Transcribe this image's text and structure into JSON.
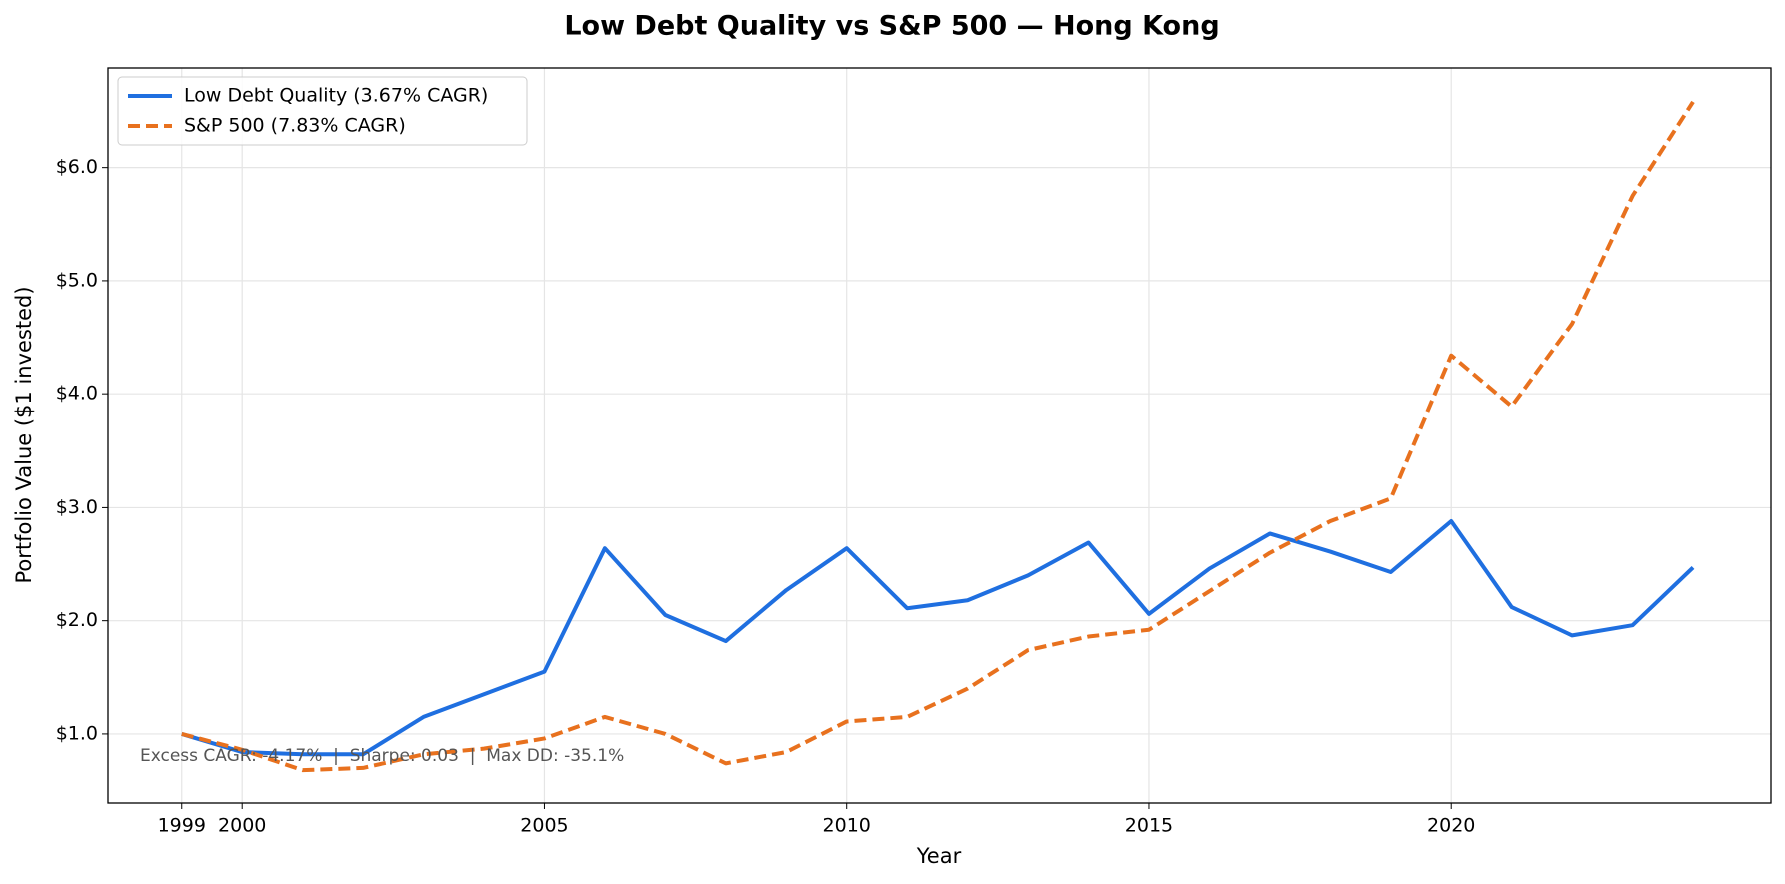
{
  "chart_data": {
    "type": "line",
    "title": "Low Debt Quality vs S&P 500 — Hong Kong",
    "x_label": "Year",
    "y_label": "Portfolio Value ($1 invested)",
    "annotation": "Excess CAGR: -4.17%  |  Sharpe: 0.03  |  Max DD: -35.1%",
    "x": [
      1999,
      2000,
      2001,
      2002,
      2003,
      2004,
      2005,
      2006,
      2007,
      2008,
      2009,
      2010,
      2011,
      2012,
      2013,
      2014,
      2015,
      2016,
      2017,
      2018,
      2019,
      2020,
      2021,
      2022,
      2023,
      2024
    ],
    "series": [
      {
        "name": "Low Debt Quality (3.67% CAGR)",
        "color": "#1f6fe0",
        "dash": false,
        "values": [
          1.0,
          0.84,
          0.82,
          0.82,
          1.15,
          1.35,
          1.55,
          2.64,
          2.05,
          1.82,
          2.27,
          2.64,
          2.11,
          2.18,
          2.4,
          2.69,
          2.06,
          2.46,
          2.77,
          2.61,
          2.43,
          2.88,
          2.12,
          1.87,
          1.96,
          2.47
        ]
      },
      {
        "name": "S&P 500 (7.83% CAGR)",
        "color": "#e8711e",
        "dash": true,
        "values": [
          1.0,
          0.86,
          0.68,
          0.7,
          0.82,
          0.87,
          0.96,
          1.15,
          1.0,
          0.74,
          0.84,
          1.11,
          1.15,
          1.4,
          1.74,
          1.86,
          1.92,
          2.26,
          2.6,
          2.88,
          3.08,
          4.34,
          3.89,
          4.62,
          5.75,
          6.58
        ]
      }
    ],
    "xlim": [
      1997.78,
      2025.29
    ],
    "ylim": [
      0.39,
      6.88
    ],
    "xticks": [
      1999,
      2000,
      2005,
      2010,
      2015,
      2020
    ],
    "yticks": [
      {
        "value": 1,
        "label": "$1.0"
      },
      {
        "value": 2,
        "label": "$2.0"
      },
      {
        "value": 3,
        "label": "$3.0"
      },
      {
        "value": 4,
        "label": "$4.0"
      },
      {
        "value": 5,
        "label": "$5.0"
      },
      {
        "value": 6,
        "label": "$6.0"
      }
    ],
    "grid": true,
    "legend": "upper left"
  }
}
